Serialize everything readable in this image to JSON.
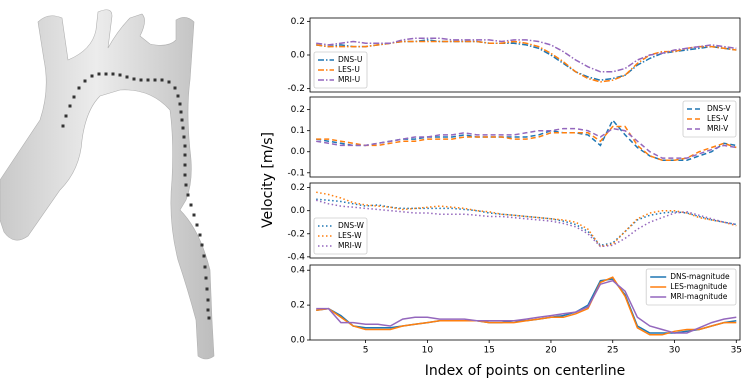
{
  "xlabel": "Index of points on centerline",
  "ylabel": "Velocity [m/s]",
  "chart_data": [
    {
      "type": "line",
      "linestyle": "dashdot",
      "legend": "lower left",
      "x": [
        1,
        2,
        3,
        4,
        5,
        6,
        7,
        8,
        9,
        10,
        11,
        12,
        13,
        14,
        15,
        16,
        17,
        18,
        19,
        20,
        21,
        22,
        23,
        24,
        25,
        26,
        27,
        28,
        29,
        30,
        31,
        32,
        33,
        34,
        35
      ],
      "xlim": [
        0.5,
        35.3
      ],
      "ylim": [
        -0.22,
        0.22
      ],
      "yticks": [
        0.2,
        {
          "value": 0,
          "label": "0.0"
        },
        -0.2
      ],
      "series": [
        {
          "name": "DNS-U",
          "color": "#1f77b4",
          "values": [
            0.06,
            0.05,
            0.06,
            0.05,
            0.05,
            0.06,
            0.07,
            0.08,
            0.08,
            0.09,
            0.08,
            0.08,
            0.08,
            0.08,
            0.07,
            0.07,
            0.07,
            0.06,
            0.04,
            0.0,
            -0.05,
            -0.1,
            -0.13,
            -0.15,
            -0.14,
            -0.12,
            -0.06,
            -0.02,
            0.01,
            0.02,
            0.03,
            0.04,
            0.05,
            0.04,
            0.03
          ]
        },
        {
          "name": "LES-U",
          "color": "#ff7f0e",
          "values": [
            0.06,
            0.05,
            0.05,
            0.05,
            0.05,
            0.06,
            0.07,
            0.08,
            0.08,
            0.08,
            0.08,
            0.08,
            0.08,
            0.08,
            0.07,
            0.07,
            0.08,
            0.07,
            0.05,
            0.01,
            -0.04,
            -0.1,
            -0.14,
            -0.16,
            -0.15,
            -0.12,
            -0.05,
            0.0,
            0.02,
            0.02,
            0.04,
            0.05,
            0.05,
            0.04,
            0.03
          ]
        },
        {
          "name": "MRI-U",
          "color": "#9467bd",
          "values": [
            0.07,
            0.06,
            0.07,
            0.08,
            0.07,
            0.07,
            0.07,
            0.09,
            0.1,
            0.1,
            0.1,
            0.09,
            0.09,
            0.09,
            0.09,
            0.08,
            0.09,
            0.09,
            0.08,
            0.06,
            0.02,
            -0.03,
            -0.07,
            -0.1,
            -0.1,
            -0.08,
            -0.03,
            0.0,
            0.01,
            0.03,
            0.04,
            0.05,
            0.06,
            0.05,
            0.04
          ]
        }
      ]
    },
    {
      "type": "line",
      "linestyle": "dashed",
      "legend": "upper right",
      "x": [
        1,
        2,
        3,
        4,
        5,
        6,
        7,
        8,
        9,
        10,
        11,
        12,
        13,
        14,
        15,
        16,
        17,
        18,
        19,
        20,
        21,
        22,
        23,
        24,
        25,
        26,
        27,
        28,
        29,
        30,
        31,
        32,
        33,
        34,
        35
      ],
      "xlim": [
        0.5,
        35.3
      ],
      "ylim": [
        -0.12,
        0.26
      ],
      "yticks": [
        0.2,
        0.1,
        {
          "value": 0,
          "label": "0.0"
        },
        -0.1
      ],
      "series": [
        {
          "name": "DNS-V",
          "color": "#1f77b4",
          "values": [
            0.06,
            0.05,
            0.04,
            0.03,
            0.03,
            0.04,
            0.05,
            0.06,
            0.06,
            0.07,
            0.07,
            0.07,
            0.08,
            0.07,
            0.07,
            0.07,
            0.07,
            0.07,
            0.08,
            0.1,
            0.09,
            0.09,
            0.08,
            0.03,
            0.15,
            0.08,
            0.02,
            -0.02,
            -0.04,
            -0.04,
            -0.04,
            -0.02,
            0.0,
            0.04,
            0.03
          ]
        },
        {
          "name": "LES-V",
          "color": "#ff7f0e",
          "values": [
            0.06,
            0.06,
            0.05,
            0.04,
            0.03,
            0.03,
            0.04,
            0.05,
            0.05,
            0.06,
            0.06,
            0.06,
            0.07,
            0.07,
            0.07,
            0.07,
            0.06,
            0.06,
            0.07,
            0.09,
            0.09,
            0.09,
            0.09,
            0.05,
            0.12,
            0.12,
            0.03,
            -0.02,
            -0.04,
            -0.04,
            -0.03,
            0.0,
            0.02,
            0.04,
            0.02
          ]
        },
        {
          "name": "MRI-V",
          "color": "#9467bd",
          "values": [
            0.05,
            0.04,
            0.03,
            0.03,
            0.03,
            0.04,
            0.05,
            0.06,
            0.07,
            0.07,
            0.08,
            0.08,
            0.09,
            0.08,
            0.08,
            0.08,
            0.08,
            0.09,
            0.1,
            0.1,
            0.11,
            0.11,
            0.1,
            0.07,
            0.11,
            0.1,
            0.05,
            0.0,
            -0.03,
            -0.03,
            -0.03,
            -0.01,
            0.01,
            0.03,
            0.02
          ]
        }
      ]
    },
    {
      "type": "line",
      "linestyle": "dotted",
      "legend": "lower left",
      "x": [
        1,
        2,
        3,
        4,
        5,
        6,
        7,
        8,
        9,
        10,
        11,
        12,
        13,
        14,
        15,
        16,
        17,
        18,
        19,
        20,
        21,
        22,
        23,
        24,
        25,
        26,
        27,
        28,
        29,
        30,
        31,
        32,
        33,
        34,
        35
      ],
      "xlim": [
        0.5,
        35.3
      ],
      "ylim": [
        -0.41,
        0.24
      ],
      "yticks": [
        0.2,
        {
          "value": 0,
          "label": "0.0"
        },
        -0.2,
        -0.4
      ],
      "series": [
        {
          "name": "DNS-W",
          "color": "#1f77b4",
          "values": [
            0.1,
            0.09,
            0.08,
            0.06,
            0.04,
            0.05,
            0.03,
            0.02,
            0.02,
            0.02,
            0.02,
            0.02,
            0.01,
            0.0,
            -0.02,
            -0.03,
            -0.04,
            -0.05,
            -0.06,
            -0.07,
            -0.09,
            -0.12,
            -0.18,
            -0.3,
            -0.28,
            -0.18,
            -0.08,
            -0.04,
            -0.02,
            -0.01,
            -0.02,
            -0.05,
            -0.08,
            -0.1,
            -0.12
          ]
        },
        {
          "name": "LES-W",
          "color": "#ff7f0e",
          "values": [
            0.16,
            0.14,
            0.11,
            0.07,
            0.05,
            0.04,
            0.03,
            0.01,
            0.02,
            0.03,
            0.04,
            0.03,
            0.02,
            0.0,
            -0.01,
            -0.03,
            -0.04,
            -0.05,
            -0.06,
            -0.07,
            -0.08,
            -0.1,
            -0.16,
            -0.31,
            -0.29,
            -0.18,
            -0.07,
            -0.02,
            0.0,
            0.0,
            -0.02,
            -0.06,
            -0.08,
            -0.1,
            -0.13
          ]
        },
        {
          "name": "MRI-W",
          "color": "#9467bd",
          "values": [
            0.09,
            0.06,
            0.04,
            0.03,
            0.02,
            0.01,
            0.0,
            -0.01,
            -0.02,
            -0.02,
            -0.03,
            -0.03,
            -0.03,
            -0.04,
            -0.05,
            -0.05,
            -0.06,
            -0.07,
            -0.08,
            -0.09,
            -0.11,
            -0.14,
            -0.2,
            -0.31,
            -0.3,
            -0.24,
            -0.16,
            -0.1,
            -0.06,
            -0.02,
            -0.01,
            -0.04,
            -0.07,
            -0.1,
            -0.12
          ]
        }
      ]
    },
    {
      "type": "line",
      "linestyle": "solid",
      "legend": "upper right",
      "x": [
        1,
        2,
        3,
        4,
        5,
        6,
        7,
        8,
        9,
        10,
        11,
        12,
        13,
        14,
        15,
        16,
        17,
        18,
        19,
        20,
        21,
        22,
        23,
        24,
        25,
        26,
        27,
        28,
        29,
        30,
        31,
        32,
        33,
        34,
        35
      ],
      "xlim": [
        0.5,
        35.3
      ],
      "ylim": [
        0,
        0.43
      ],
      "xticks": [
        5,
        10,
        15,
        20,
        25,
        30,
        35
      ],
      "yticks": [
        0.4,
        0.2,
        {
          "value": 0,
          "label": "0.0"
        }
      ],
      "series": [
        {
          "name": "DNS-magnitude",
          "color": "#1f77b4",
          "values": [
            0.17,
            0.18,
            0.14,
            0.08,
            0.07,
            0.07,
            0.07,
            0.08,
            0.09,
            0.1,
            0.11,
            0.11,
            0.11,
            0.11,
            0.1,
            0.1,
            0.11,
            0.11,
            0.12,
            0.13,
            0.14,
            0.16,
            0.2,
            0.34,
            0.35,
            0.26,
            0.08,
            0.04,
            0.04,
            0.04,
            0.05,
            0.06,
            0.08,
            0.1,
            0.11
          ]
        },
        {
          "name": "LES-magnitude",
          "color": "#ff7f0e",
          "values": [
            0.17,
            0.18,
            0.13,
            0.08,
            0.06,
            0.06,
            0.06,
            0.08,
            0.09,
            0.1,
            0.11,
            0.11,
            0.11,
            0.11,
            0.1,
            0.1,
            0.1,
            0.11,
            0.12,
            0.13,
            0.13,
            0.15,
            0.18,
            0.33,
            0.36,
            0.25,
            0.07,
            0.03,
            0.03,
            0.05,
            0.06,
            0.06,
            0.08,
            0.1,
            0.1
          ]
        },
        {
          "name": "MRI-magnitude",
          "color": "#9467bd",
          "values": [
            0.18,
            0.18,
            0.1,
            0.1,
            0.09,
            0.09,
            0.08,
            0.12,
            0.13,
            0.13,
            0.12,
            0.12,
            0.12,
            0.11,
            0.11,
            0.11,
            0.11,
            0.12,
            0.13,
            0.14,
            0.15,
            0.16,
            0.19,
            0.32,
            0.34,
            0.28,
            0.13,
            0.08,
            0.06,
            0.04,
            0.04,
            0.07,
            0.1,
            0.12,
            0.13
          ]
        }
      ]
    }
  ]
}
